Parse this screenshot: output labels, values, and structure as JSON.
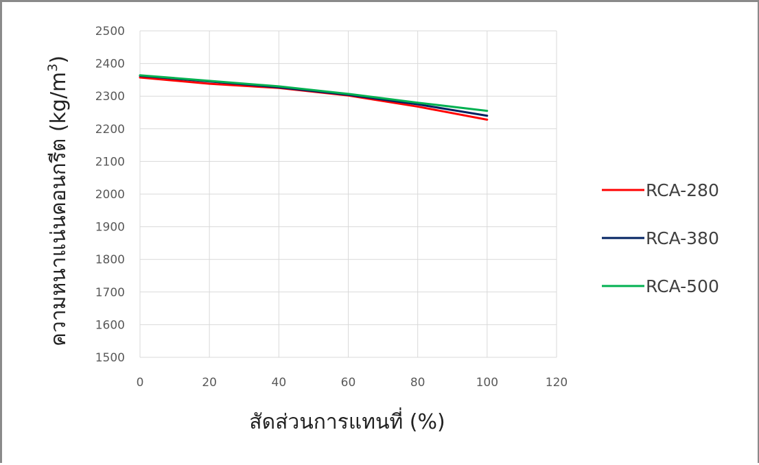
{
  "chart_data": {
    "type": "line",
    "title": "",
    "xlabel": "สัดส่วนการแทนที่ (%)",
    "ylabel": "ความหนาแน่นคอนกรีต (kg/m",
    "ylabel_superscript": "3",
    "ylabel_close": ")",
    "xlim": [
      0,
      120
    ],
    "ylim": [
      1500,
      2500
    ],
    "x_ticks": [
      0,
      20,
      40,
      60,
      80,
      100,
      120
    ],
    "y_ticks": [
      1500,
      1600,
      1700,
      1800,
      1900,
      2000,
      2100,
      2200,
      2300,
      2400,
      2500
    ],
    "grid": true,
    "legend_position": "right",
    "x": [
      0,
      20,
      40,
      60,
      80,
      100
    ],
    "series": [
      {
        "name": "RCA-280",
        "color": "#ff0000",
        "values": [
          2357,
          2338,
          2325,
          2302,
          2268,
          2228
        ]
      },
      {
        "name": "RCA-380",
        "color": "#002060",
        "values": [
          2362,
          2345,
          2327,
          2304,
          2275,
          2240
        ]
      },
      {
        "name": "RCA-500",
        "color": "#00b050",
        "values": [
          2364,
          2347,
          2330,
          2307,
          2280,
          2255
        ]
      }
    ]
  }
}
